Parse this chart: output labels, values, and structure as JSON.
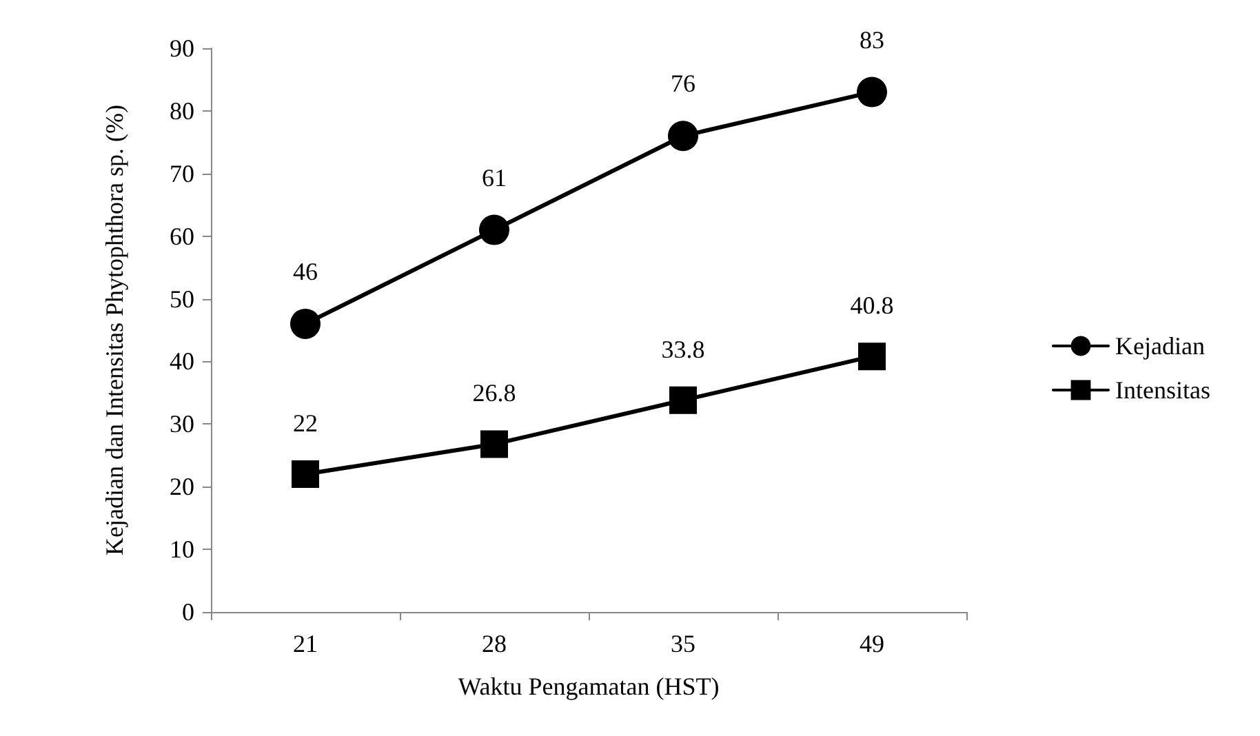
{
  "chart_data": {
    "type": "line",
    "xlabel": "Waktu Pengamatan (HST)",
    "ylabel": "Kejadian dan Intensitas Phytophthora sp. (%)",
    "categories": [
      "21",
      "28",
      "35",
      "49"
    ],
    "series": [
      {
        "name": "Kejadian",
        "color": "#000000",
        "marker": "circle",
        "values": [
          46,
          61,
          76,
          83
        ]
      },
      {
        "name": "Intensitas",
        "color": "#000000",
        "marker": "square",
        "values": [
          22,
          26.8,
          33.8,
          40.8
        ]
      }
    ],
    "ylim": [
      0,
      90
    ],
    "yticks": [
      0,
      10,
      20,
      30,
      40,
      50,
      60,
      70,
      80,
      90
    ],
    "grid": false,
    "legend": "right",
    "data_labels": true,
    "line_style": "solid"
  }
}
